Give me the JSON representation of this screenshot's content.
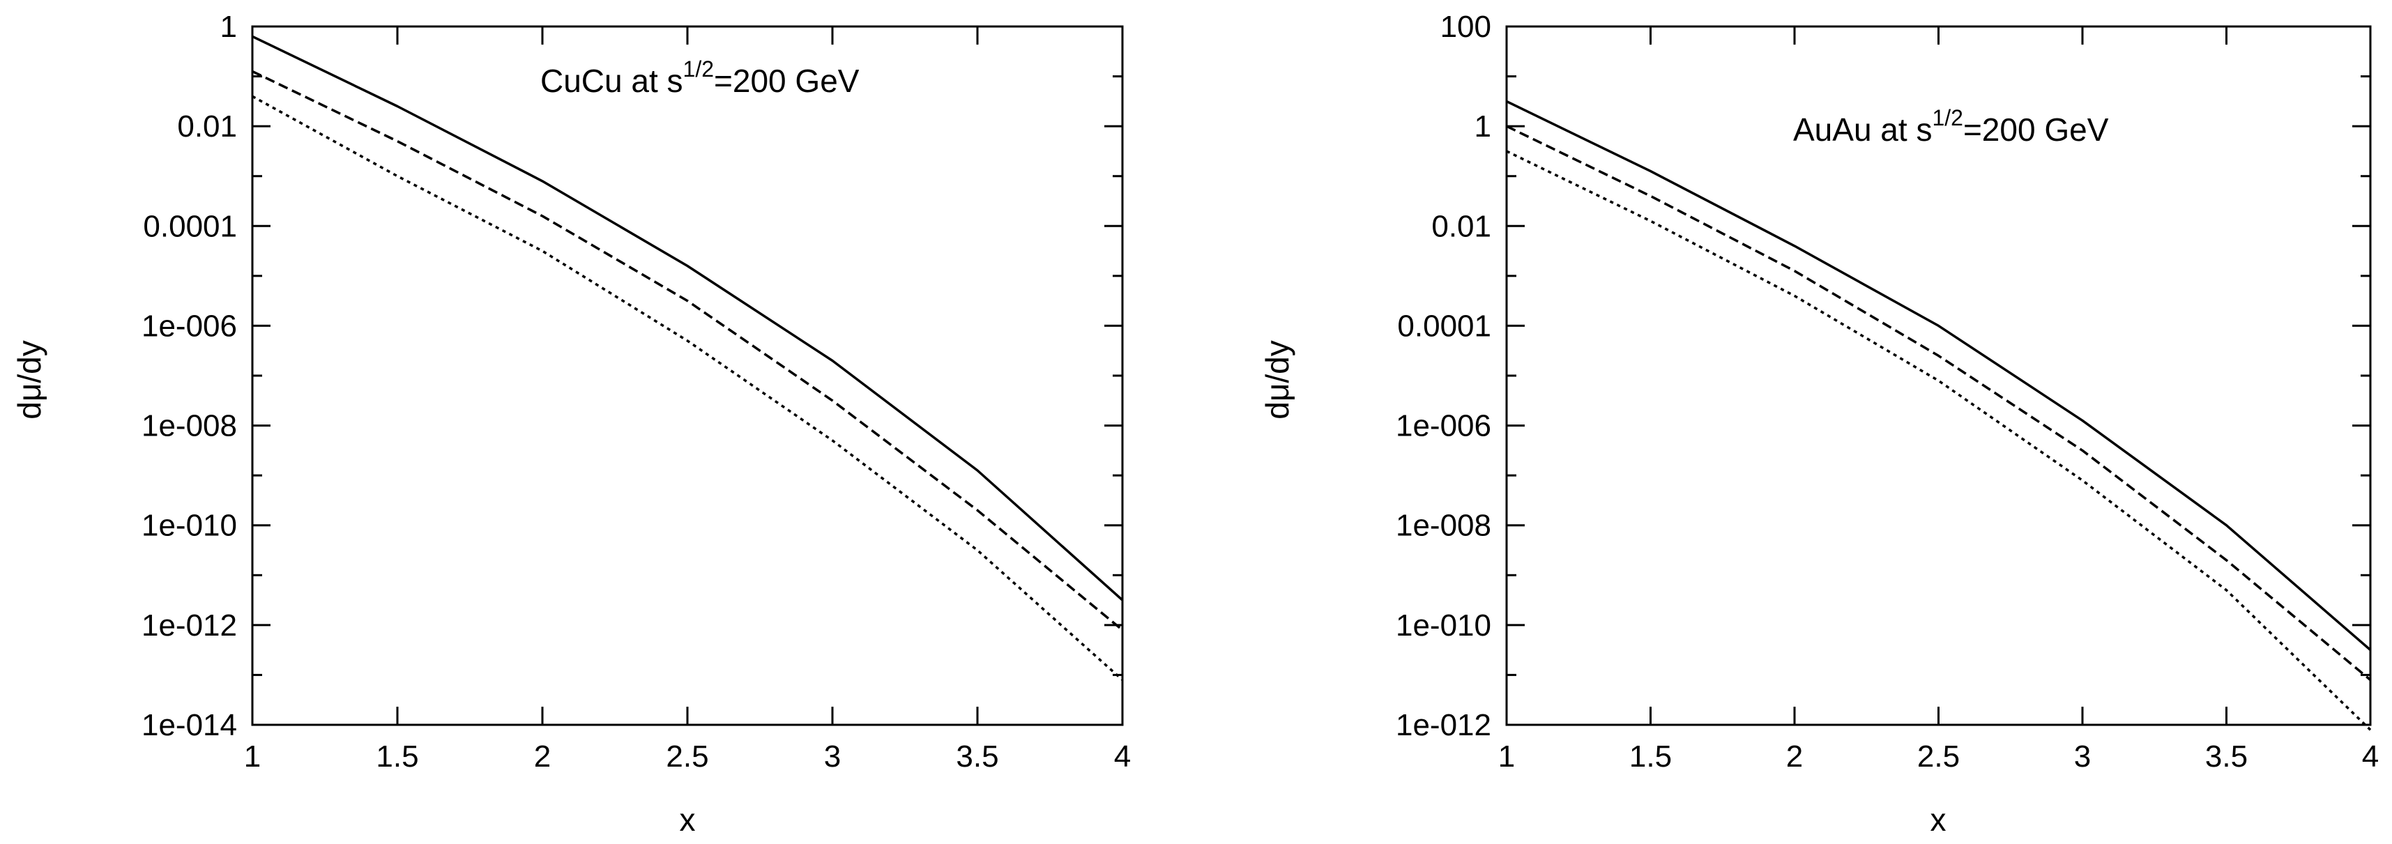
{
  "chart_data": [
    {
      "id": "cucu",
      "type": "line",
      "title": "",
      "annotation": {
        "prefix": "CuCu at s",
        "superscript": "1/2",
        "suffix": "=200 GeV"
      },
      "xlabel": "x",
      "ylabel": "dμ/dy",
      "xlim": [
        1,
        4
      ],
      "ylim_log10": [
        -14,
        0
      ],
      "y_scale": "log",
      "xticks": [
        {
          "value": 1,
          "label": "1"
        },
        {
          "value": 1.5,
          "label": "1.5"
        },
        {
          "value": 2,
          "label": "2"
        },
        {
          "value": 2.5,
          "label": "2.5"
        },
        {
          "value": 3,
          "label": "3"
        },
        {
          "value": 3.5,
          "label": "3.5"
        },
        {
          "value": 4,
          "label": "4"
        }
      ],
      "yticks": [
        {
          "value_log10": 0,
          "label": "1"
        },
        {
          "value_log10": -2,
          "label": "0.01"
        },
        {
          "value_log10": -4,
          "label": "0.0001"
        },
        {
          "value_log10": -6,
          "label": "1e-006"
        },
        {
          "value_log10": -8,
          "label": "1e-008"
        },
        {
          "value_log10": -10,
          "label": "1e-010"
        },
        {
          "value_log10": -12,
          "label": "1e-012"
        },
        {
          "value_log10": -14,
          "label": "1e-014"
        }
      ],
      "x": [
        1.0,
        1.5,
        2.0,
        2.5,
        3.0,
        3.5,
        4.0
      ],
      "series": [
        {
          "name": "solid",
          "dash": "solid",
          "log10_values": [
            -0.2,
            -1.6,
            -3.1,
            -4.8,
            -6.7,
            -8.9,
            -11.5
          ]
        },
        {
          "name": "dashed",
          "dash": "dashed",
          "log10_values": [
            -0.9,
            -2.3,
            -3.8,
            -5.5,
            -7.5,
            -9.7,
            -12.1
          ]
        },
        {
          "name": "dotted",
          "dash": "dotted",
          "log10_values": [
            -1.4,
            -3.0,
            -4.5,
            -6.3,
            -8.3,
            -10.5,
            -13.1
          ]
        }
      ]
    },
    {
      "id": "auau",
      "type": "line",
      "title": "",
      "annotation": {
        "prefix": "AuAu at s",
        "superscript": "1/2",
        "suffix": "=200 GeV"
      },
      "xlabel": "x",
      "ylabel": "dμ/dy",
      "xlim": [
        1,
        4
      ],
      "ylim_log10": [
        -12,
        2
      ],
      "y_scale": "log",
      "xticks": [
        {
          "value": 1,
          "label": "1"
        },
        {
          "value": 1.5,
          "label": "1.5"
        },
        {
          "value": 2,
          "label": "2"
        },
        {
          "value": 2.5,
          "label": "2.5"
        },
        {
          "value": 3,
          "label": "3"
        },
        {
          "value": 3.5,
          "label": "3.5"
        },
        {
          "value": 4,
          "label": "4"
        }
      ],
      "yticks": [
        {
          "value_log10": 2,
          "label": "100"
        },
        {
          "value_log10": 0,
          "label": "1"
        },
        {
          "value_log10": -2,
          "label": "0.01"
        },
        {
          "value_log10": -4,
          "label": "0.0001"
        },
        {
          "value_log10": -6,
          "label": "1e-006"
        },
        {
          "value_log10": -8,
          "label": "1e-008"
        },
        {
          "value_log10": -10,
          "label": "1e-010"
        },
        {
          "value_log10": -12,
          "label": "1e-012"
        }
      ],
      "x": [
        1.0,
        1.5,
        2.0,
        2.5,
        3.0,
        3.5,
        4.0
      ],
      "series": [
        {
          "name": "solid",
          "dash": "solid",
          "log10_values": [
            0.5,
            -0.9,
            -2.4,
            -4.0,
            -5.9,
            -8.0,
            -10.5
          ]
        },
        {
          "name": "dashed",
          "dash": "dashed",
          "log10_values": [
            0.0,
            -1.4,
            -2.9,
            -4.6,
            -6.5,
            -8.7,
            -11.1
          ]
        },
        {
          "name": "dotted",
          "dash": "dotted",
          "log10_values": [
            -0.5,
            -1.9,
            -3.4,
            -5.1,
            -7.1,
            -9.3,
            -12.1
          ]
        }
      ]
    }
  ]
}
